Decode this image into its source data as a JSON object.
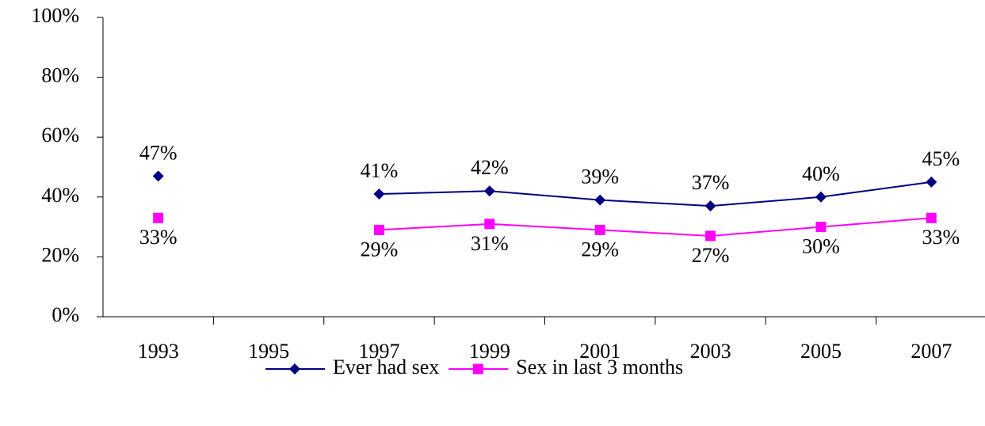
{
  "chart_data": {
    "type": "line",
    "categories": [
      "1993",
      "1995",
      "1997",
      "1999",
      "2001",
      "2003",
      "2005",
      "2007"
    ],
    "series": [
      {
        "name": "Ever had sex",
        "color": "#000080",
        "marker": "diamond",
        "values": [
          47,
          null,
          41,
          42,
          39,
          37,
          40,
          45
        ],
        "value_labels": [
          "47%",
          null,
          "41%",
          "42%",
          "39%",
          "37%",
          "40%",
          "45%"
        ]
      },
      {
        "name": "Sex in last 3 months",
        "color": "#ff00ff",
        "marker": "square",
        "values": [
          33,
          null,
          29,
          31,
          29,
          27,
          30,
          33
        ],
        "value_labels": [
          "33%",
          null,
          "29%",
          "31%",
          "29%",
          "27%",
          "30%",
          "33%"
        ]
      }
    ],
    "ylim": [
      0,
      100
    ],
    "yticks": [
      {
        "value": 0,
        "label": "0%"
      },
      {
        "value": 20,
        "label": "20%"
      },
      {
        "value": 40,
        "label": "40%"
      },
      {
        "value": 60,
        "label": "60%"
      },
      {
        "value": 80,
        "label": "80%"
      },
      {
        "value": 100,
        "label": "100%"
      }
    ],
    "grid": false,
    "legend": "bottom"
  }
}
